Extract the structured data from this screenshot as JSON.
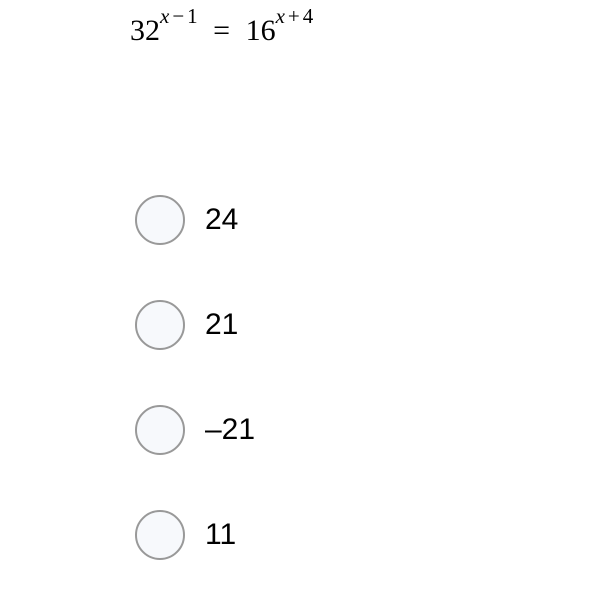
{
  "equation": {
    "base1": "32",
    "exp1_var": "x",
    "exp1_op": "−",
    "exp1_num": "1",
    "equals": "=",
    "base2": "16",
    "exp2_var": "x",
    "exp2_op": "+",
    "exp2_num": "4"
  },
  "options": [
    {
      "label": "24"
    },
    {
      "label": "21"
    },
    {
      "label": "–21"
    },
    {
      "label": "11"
    }
  ],
  "styles": {
    "equation_fontsize": 30,
    "exponent_fontsize": 21,
    "option_fontsize": 30,
    "radio_size": 50,
    "radio_border_color": "#999999",
    "radio_bg_color": "#f7f9fc",
    "background_color": "#ffffff",
    "text_color": "#000000",
    "option_spacing": 55
  }
}
